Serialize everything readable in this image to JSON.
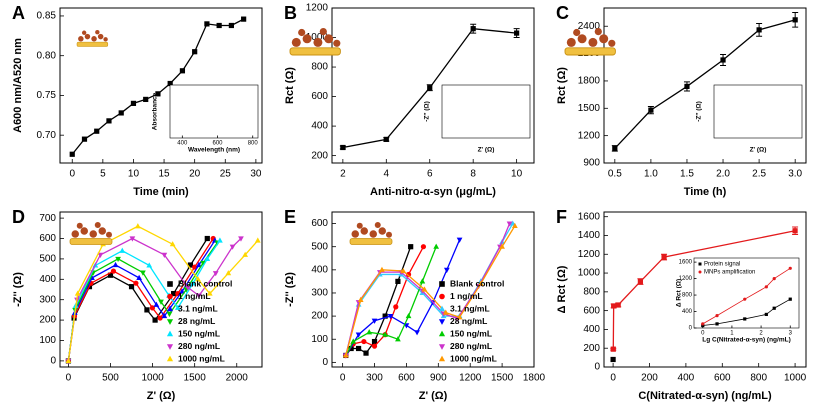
{
  "chart_data": [
    {
      "type": "line",
      "label": "A",
      "xlabel": "Time (min)",
      "ylabel": "A600 nm/A520 nm",
      "xlim": [
        -2,
        31
      ],
      "xticks": [
        0,
        5,
        10,
        15,
        20,
        25,
        30
      ],
      "ylim": [
        0.665,
        0.86
      ],
      "yticks": [
        {
          "value": 0.7,
          "label": "0.70"
        },
        {
          "value": 0.75,
          "label": "0.75"
        },
        {
          "value": 0.8,
          "label": "0.80"
        },
        {
          "value": 0.85,
          "label": "0.85"
        }
      ],
      "series": [
        {
          "color": "#000000",
          "marker": "square",
          "x": [
            0,
            2,
            4,
            6,
            8,
            10,
            12,
            14,
            16,
            18,
            20,
            22,
            24,
            26,
            28
          ],
          "values": [
            0.676,
            0.695,
            0.705,
            0.718,
            0.728,
            0.74,
            0.745,
            0.752,
            0.765,
            0.781,
            0.805,
            0.84,
            0.838,
            0.838,
            0.846
          ]
        }
      ],
      "inset": {
        "xlabel": "Wavelength (nm)",
        "ylabel": "Absorbance",
        "xlim": [
          330,
          830
        ],
        "xticks": [
          400,
          600,
          800
        ]
      }
    },
    {
      "type": "line",
      "label": "B",
      "xlabel": "Anti-nitro-α-syn (μg/mL)",
      "ylabel": "Rct (Ω)",
      "xlim": [
        1.5,
        10.8
      ],
      "xticks": [
        2,
        4,
        6,
        8,
        10
      ],
      "ylim": [
        150,
        1200
      ],
      "yticks": [
        200,
        400,
        600,
        800,
        1000,
        1200
      ],
      "series": [
        {
          "color": "#000000",
          "marker": "square",
          "x": [
            2,
            4,
            6,
            8,
            10
          ],
          "values": [
            255,
            310,
            660,
            1060,
            1030
          ],
          "errors": [
            10,
            12,
            20,
            30,
            30
          ]
        }
      ],
      "inset": {
        "xlabel": "Z' (Ω)",
        "ylabel": "-Z'' (Ω)"
      }
    },
    {
      "type": "line",
      "label": "C",
      "xlabel": "Time (h)",
      "ylabel": "Rct (Ω)",
      "xlim": [
        0.35,
        3.15
      ],
      "xticks": [
        0.5,
        {
          "value": 1,
          "label": "1.0"
        },
        1.5,
        {
          "value": 2,
          "label": "2.0"
        },
        2.5,
        {
          "value": 3,
          "label": "3.0"
        }
      ],
      "ylim": [
        900,
        2600
      ],
      "yticks": [
        900,
        1200,
        1500,
        1800,
        2100,
        2400
      ],
      "series": [
        {
          "color": "#000000",
          "marker": "square",
          "x": [
            0.5,
            1,
            1.5,
            2,
            2.5,
            3
          ],
          "values": [
            1060,
            1480,
            1740,
            2030,
            2360,
            2470
          ],
          "errors": [
            30,
            40,
            50,
            60,
            70,
            80
          ]
        }
      ],
      "inset": {
        "xlabel": "Z' (Ω)",
        "ylabel": "-Z'' (Ω)"
      }
    },
    {
      "type": "line",
      "label": "D",
      "xlabel": "Z' (Ω)",
      "ylabel": "-Z'' (Ω)",
      "xlim": [
        -100,
        2300
      ],
      "xticks": [
        0,
        500,
        1000,
        1500,
        2000
      ],
      "ylim": [
        -30,
        730
      ],
      "yticks": [
        0,
        100,
        200,
        300,
        400,
        500,
        600,
        700
      ],
      "legend": "lower right",
      "series": [
        {
          "name": "Blank control",
          "color": "#000000",
          "marker": "square",
          "x": [
            0,
            67,
            250,
            500,
            750,
            933,
            1030,
            1250,
            1450,
            1650
          ],
          "values": [
            0,
            210,
            364,
            420,
            364,
            250,
            200,
            330,
            470,
            600
          ]
        },
        {
          "name": "1 ng/mL",
          "color": "#ff0000",
          "marker": "circle",
          "x": [
            0,
            72,
            268,
            535,
            802,
            998,
            1090,
            1300,
            1500,
            1720
          ],
          "values": [
            0,
            220,
            381,
            440,
            381,
            260,
            210,
            330,
            460,
            600
          ]
        },
        {
          "name": "3.1 ng/mL",
          "color": "#0000ff",
          "marker": "triangle",
          "x": [
            0,
            75,
            280,
            560,
            840,
            1045,
            1140,
            1350,
            1550,
            1740
          ],
          "values": [
            0,
            235,
            407,
            470,
            407,
            275,
            220,
            340,
            470,
            590
          ]
        },
        {
          "name": "28 ng/mL",
          "color": "#00cc00",
          "marker": "down",
          "x": [
            0,
            79,
            295,
            590,
            885,
            1100,
            1200,
            1400,
            1600,
            1770
          ],
          "values": [
            0,
            250,
            433,
            500,
            433,
            290,
            230,
            350,
            480,
            580
          ]
        },
        {
          "name": "150 ng/mL",
          "color": "#00e5ff",
          "marker": "triangle",
          "x": [
            0,
            86,
            320,
            640,
            960,
            1195,
            1300,
            1480,
            1650,
            1800
          ],
          "values": [
            0,
            270,
            468,
            540,
            468,
            320,
            260,
            380,
            500,
            590
          ]
        },
        {
          "name": "280 ng/mL",
          "color": "#cc33cc",
          "marker": "down",
          "x": [
            0,
            102,
            380,
            760,
            1140,
            1420,
            1550,
            1750,
            1950,
            2050
          ],
          "values": [
            0,
            300,
            520,
            600,
            520,
            360,
            320,
            430,
            560,
            600
          ]
        },
        {
          "name": "1000 ng/mL",
          "color": "#ffd700",
          "marker": "triangle",
          "x": [
            0,
            110,
            412,
            825,
            1238,
            1540,
            1680,
            1900,
            2100,
            2250
          ],
          "values": [
            0,
            330,
            572,
            660,
            572,
            400,
            330,
            430,
            520,
            590
          ]
        }
      ]
    },
    {
      "type": "line",
      "label": "E",
      "xlabel": "Z' (Ω)",
      "ylabel": "-Z'' (Ω)",
      "xlim": [
        -100,
        1800
      ],
      "xticks": [
        0,
        300,
        600,
        900,
        1200,
        1500,
        1800
      ],
      "ylim": [
        -20,
        650
      ],
      "yticks": [
        0,
        100,
        200,
        300,
        400,
        500,
        600
      ],
      "legend": "lower right",
      "series": [
        {
          "name": "Blank control",
          "color": "#000000",
          "marker": "square",
          "x": [
            30,
            80,
            150,
            220,
            300,
            400,
            520,
            640
          ],
          "values": [
            30,
            60,
            60,
            40,
            90,
            200,
            350,
            500
          ]
        },
        {
          "name": "1 ng/mL",
          "color": "#ff0000",
          "marker": "circle",
          "x": [
            30,
            100,
            200,
            300,
            400,
            500,
            620,
            760
          ],
          "values": [
            30,
            80,
            90,
            70,
            120,
            240,
            380,
            500
          ]
        },
        {
          "name": "3.1 ng/mL",
          "color": "#33ccff",
          "marker": "triangle",
          "x": [
            30,
            150,
            350,
            550,
            750,
            950,
            1100,
            1300,
            1500,
            1600
          ],
          "values": [
            30,
            250,
            380,
            380,
            300,
            200,
            200,
            350,
            520,
            600
          ]
        },
        {
          "name": "28 ng/mL",
          "color": "#0000ff",
          "marker": "down",
          "x": [
            30,
            150,
            300,
            450,
            600,
            700,
            850,
            980,
            1100
          ],
          "values": [
            30,
            120,
            180,
            200,
            160,
            130,
            260,
            400,
            530
          ]
        },
        {
          "name": "150 ng/mL",
          "color": "#00cc00",
          "marker": "triangle",
          "x": [
            30,
            100,
            250,
            400,
            520,
            620,
            750,
            880
          ],
          "values": [
            30,
            90,
            130,
            120,
            100,
            200,
            350,
            500
          ]
        },
        {
          "name": "280 ng/mL",
          "color": "#cc33cc",
          "marker": "down",
          "x": [
            30,
            150,
            350,
            550,
            750,
            950,
            1080,
            1280,
            1480,
            1570
          ],
          "values": [
            30,
            260,
            390,
            390,
            310,
            210,
            190,
            330,
            500,
            600
          ]
        },
        {
          "name": "1000 ng/mL",
          "color": "#ff9900",
          "marker": "triangle",
          "x": [
            30,
            170,
            370,
            570,
            770,
            970,
            1100,
            1300,
            1500,
            1620
          ],
          "values": [
            30,
            270,
            400,
            395,
            315,
            215,
            195,
            340,
            500,
            590
          ]
        }
      ]
    },
    {
      "type": "line",
      "label": "F",
      "xlabel": "C(Nitrated-α-syn) (ng/mL)",
      "ylabel": "Δ Rct (Ω)",
      "xlim": [
        -50,
        1060
      ],
      "xticks": [
        0,
        200,
        400,
        600,
        800,
        1000
      ],
      "ylim": [
        0,
        1650
      ],
      "yticks": [
        0,
        200,
        400,
        600,
        800,
        1000,
        1200,
        1400,
        1600
      ],
      "series": [
        {
          "color": "#000000",
          "marker": "square",
          "x": [
            0
          ],
          "values": [
            80
          ]
        },
        {
          "color": "#e31a1c",
          "marker": "square",
          "x": [
            1,
            3.1,
            28,
            150,
            280,
            1000
          ],
          "values": [
            190,
            650,
            660,
            910,
            1170,
            1450
          ],
          "errors": [
            10,
            20,
            20,
            30,
            30,
            40
          ]
        }
      ],
      "inset": {
        "xlabel": "Lg C(Nitrated-α-syn) (ng/mL)",
        "ylabel": "Δ Rct (Ω)",
        "xlim": [
          -0.3,
          3.3
        ],
        "xticks": [
          0,
          1,
          2,
          3
        ],
        "ylim": [
          0,
          1700
        ],
        "yticks": [
          0,
          400,
          800,
          1200,
          1600
        ],
        "legend": "upper left",
        "series": [
          {
            "name": "Protein signal",
            "color": "#000000",
            "marker": "square",
            "x": [
              0,
              0.49,
              1.44,
              2.18,
              2.45,
              3
            ],
            "values": [
              60,
              100,
              220,
              330,
              480,
              700
            ]
          },
          {
            "name": "MNPs amplification",
            "color": "#e31a1c",
            "marker": "circle",
            "x": [
              0,
              0.49,
              1.44,
              2.18,
              2.45,
              3
            ],
            "values": [
              100,
              300,
              700,
              1000,
              1200,
              1450
            ]
          }
        ]
      }
    }
  ]
}
